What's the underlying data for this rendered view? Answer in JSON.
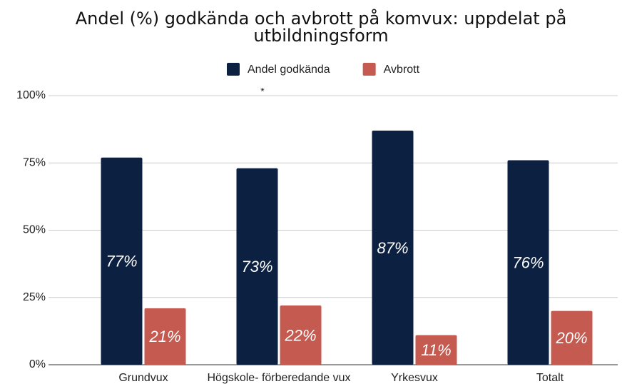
{
  "chart_data": {
    "type": "bar",
    "title": "Andel (%) godkända och avbrott på komvux: uppdelat på utbildningsform",
    "categories": [
      "Grundvux",
      "Högskole- förberedande vux",
      "Yrkesvux",
      "Totalt"
    ],
    "series": [
      {
        "name": "Andel godkända",
        "color": "#0c2142",
        "values": [
          77,
          73,
          87,
          76
        ],
        "value_labels": [
          "77%",
          "73%",
          "87%",
          "76%"
        ]
      },
      {
        "name": "Avbrott",
        "color": "#c45a50",
        "values": [
          21,
          22,
          11,
          20
        ],
        "value_labels": [
          "21%",
          "22%",
          "11%",
          "20%"
        ]
      }
    ],
    "ylim": [
      0,
      100
    ],
    "yticks": [
      {
        "value": 0,
        "label": "0%"
      },
      {
        "value": 25,
        "label": "25%"
      },
      {
        "value": 50,
        "label": "50%"
      },
      {
        "value": 75,
        "label": "75%"
      },
      {
        "value": 100,
        "label": "100%"
      }
    ],
    "grid": true,
    "legend": "top",
    "annotation": "*"
  }
}
